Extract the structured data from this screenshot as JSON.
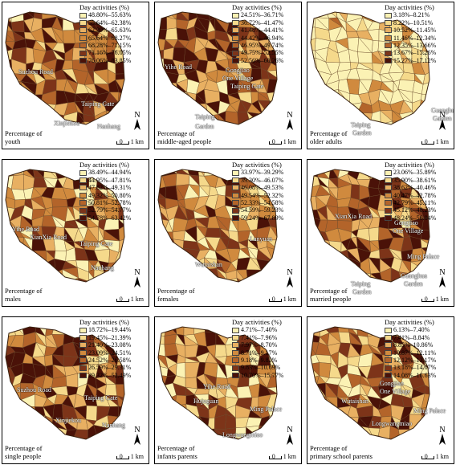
{
  "legend_title": "Day activities (%)",
  "north_label": "N",
  "scale_zero": "0",
  "scale_label": "1 km",
  "palette": [
    "#fbf2b4",
    "#f5d98b",
    "#e8b062",
    "#d08a3e",
    "#b3642a",
    "#7d3419",
    "#4a1208"
  ],
  "panels": [
    {
      "title_lines": [
        "Percentage of",
        "youth"
      ],
      "classes": [
        "48.80%–55.63%",
        "55.64%–62.38%",
        "62.39%–65.63%",
        "65.64%–68.27%",
        "68.28%–71.15%",
        "71.16%–76.05%",
        "76.06%–83.85%"
      ],
      "bias": 1,
      "labels": [
        "Suzhou Road",
        "Taiping Gate",
        "Xinjiekou",
        "Nanhang"
      ]
    },
    {
      "title_lines": [
        "Percentage of",
        "middle-aged people"
      ],
      "classes": [
        "24.51%–36.71%",
        "36.72%–41.47%",
        "41.48%–44.41%",
        "44.42%–46.94%",
        "46.95%–49.74%",
        "49.75%–52.55%",
        "52.56%–60.26%"
      ],
      "bias": 1,
      "labels": [
        "Yihe Road",
        "Gongjiao",
        "One Village",
        "Taiping Gate",
        "Taiping",
        "Garden"
      ]
    },
    {
      "title_lines": [
        "Percentage of",
        "older adults"
      ],
      "classes": [
        "3.18%–8.21%",
        "8.22%–10.51%",
        "10.52%–11.45%",
        "11.46%–12.34%",
        "12.35%–13.66%",
        "13.67%–15.26%",
        "15.27%–17.12%"
      ],
      "bias": -3,
      "labels": [
        "Guanghua",
        "Garden",
        "Taiping",
        "Garden"
      ]
    },
    {
      "title_lines": [
        "Percentage of",
        "males"
      ],
      "classes": [
        "38.49%–44.94%",
        "44.95%–47.81%",
        "47.82%–49.31%",
        "49.32%–50.80%",
        "50.81%–52.78%",
        "52.79%–54.77%",
        "54.78%–63.42%"
      ],
      "bias": 0,
      "labels": [
        "Yihe Road",
        "XianXia Road",
        "Taiping Gate",
        "Nanhang"
      ]
    },
    {
      "title_lines": [
        "Percentage of",
        "females"
      ],
      "classes": [
        "33.97%–39.29%",
        "39.30%–46.07%",
        "46.08%–49.53%",
        "49.54%–52.32%",
        "52.33%–54.58%",
        "54.59%–59.23%",
        "59.24%–67.89%"
      ],
      "bias": 0,
      "labels": [
        "Wutaishan",
        "Lanyuan"
      ]
    },
    {
      "title_lines": [
        "Percentage of",
        "married people"
      ],
      "classes": [
        "23.06%–35.89%",
        "35.90%–38.61%",
        "38.62%–40.46%",
        "40.47%–42.78%",
        "42.79%–45.11%",
        "45.12%–48.23%",
        "48.24%–56.04%"
      ],
      "bias": 1,
      "labels": [
        "XianXia Road",
        "Gongjiao",
        "One Village",
        "Ming Palace",
        "Guanghua",
        "Garden",
        "Taiping",
        "Garden"
      ]
    },
    {
      "title_lines": [
        "Percentage of",
        "single people"
      ],
      "classes": [
        "18.72%–19.44%",
        "19.45%–21.39%",
        "21.40%–23.08%",
        "23.09%–24.51%",
        "24.52%–26.58%",
        "26.59%–29.31%",
        "29.32%–52.49%"
      ],
      "bias": 1,
      "labels": [
        "Suzhou Road",
        "Taiping Gate",
        "Xinjiekou",
        "Nanhang"
      ]
    },
    {
      "title_lines": [
        "Percentage of",
        "infants parents"
      ],
      "classes": [
        "4.71%–7.40%",
        "7.41%–7.96%",
        "7.97%–8.70%",
        "8.71%–9.17%",
        "9.18%–9.82%",
        "9.83%–10.69%",
        "10.70%–15.77%"
      ],
      "bias": 0,
      "labels": [
        "Yihe Road",
        "Hujuguan",
        "Ming Palace",
        "Longwangmiao"
      ]
    },
    {
      "title_lines": [
        "Percentage of",
        "primary school parents"
      ],
      "classes": [
        "6.13%–7.40%",
        "7.41%–8.84%",
        "8.85%–10.86%",
        "10.87%–12.11%",
        "12.12%–13.17%",
        "13.18%–14.07%",
        "14.08%–16.63%"
      ],
      "bias": 0,
      "labels": [
        "Gongjiao",
        "One Village",
        "Wutaishan",
        "Ming Palace",
        "Longwangmiao"
      ]
    }
  ]
}
